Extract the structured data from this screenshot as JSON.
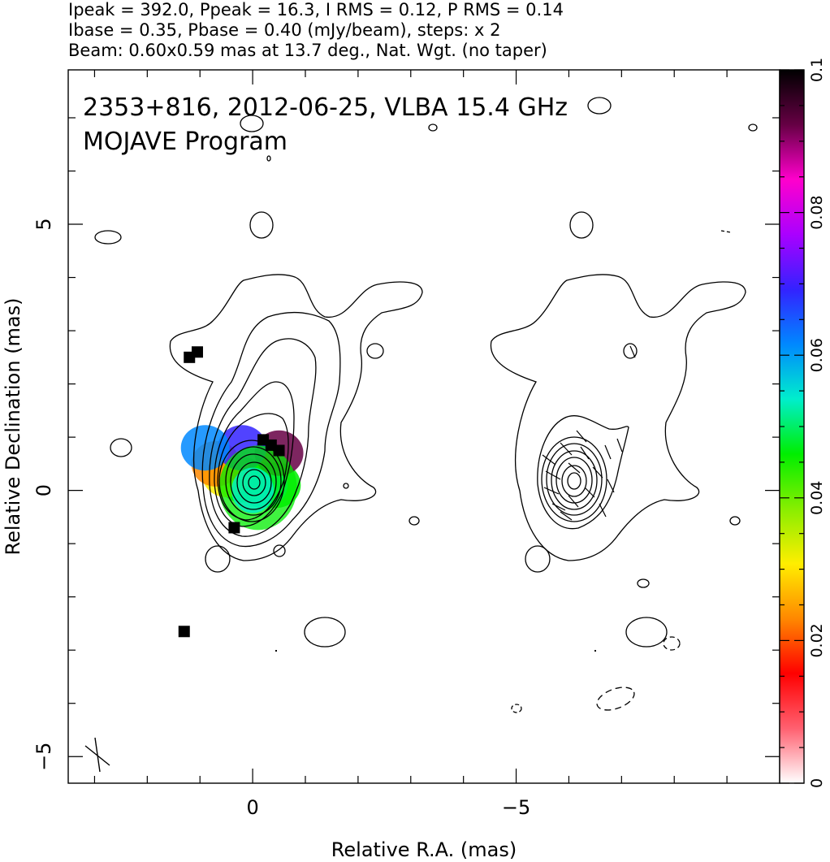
{
  "header": {
    "line1": "Ipeak = 392.0, Ppeak = 16.3, I RMS = 0.12, P RMS = 0.14",
    "line2": "Ibase = 0.35, Pbase = 0.40 (mJy/beam), steps: x 2",
    "line3": "Beam: 0.60x0.59 mas at 13.7 deg., Nat. Wgt. (no taper)"
  },
  "chart_data": {
    "type": "heatmap",
    "title": "2353+816, 2012-06-25, VLBA 15.4 GHz",
    "subtitle": "MOJAVE Program",
    "xlabel": "Relative R.A. (mas)",
    "ylabel": "Relative Declination (mas)",
    "xlim": [
      3.5,
      -10
    ],
    "ylim": [
      -5.5,
      7.9
    ],
    "x_ticks": [
      0,
      -5
    ],
    "x_tick_labels": [
      "0",
      "−5"
    ],
    "y_ticks": [
      -5,
      0,
      5
    ],
    "y_tick_labels": [
      "−5",
      "0",
      "5"
    ],
    "colorbar": {
      "range": [
        0,
        0.1
      ],
      "ticks": [
        0,
        0.02,
        0.04,
        0.06,
        0.08,
        0.1
      ],
      "tick_labels": [
        "0",
        "0.02",
        "0.04",
        "0.06",
        "0.08",
        "0.1"
      ],
      "colors": [
        "#ffffff",
        "#ff6070",
        "#ff0000",
        "#ff8800",
        "#ffee00",
        "#88ee00",
        "#00ee00",
        "#00eecc",
        "#0088ff",
        "#3322ff",
        "#aa00ff",
        "#ff00cc",
        "#660044",
        "#000000"
      ]
    },
    "beam": {
      "major_mas": 0.6,
      "minor_mas": 0.59,
      "pa_deg": 13.7
    },
    "total_intensity_contours": {
      "center": [
        0,
        0
      ],
      "peak_mJy_per_beam": 392.0,
      "base_mJy_per_beam": 0.35,
      "step_factor": 2
    },
    "polarization_map": {
      "fractional_pol_values": [
        {
          "x": -0.45,
          "y": 0.1,
          "v": 0.045
        },
        {
          "x": -0.2,
          "y": 0.1,
          "v": 0.05
        },
        {
          "x": 0.2,
          "y": 0.2,
          "v": 0.045
        },
        {
          "x": 0.5,
          "y": 0.3,
          "v": 0.03
        },
        {
          "x": 0.7,
          "y": 0.5,
          "v": 0.025
        },
        {
          "x": -0.5,
          "y": 0.7,
          "v": 0.09
        },
        {
          "x": 0.2,
          "y": 0.8,
          "v": 0.07
        },
        {
          "x": 0.9,
          "y": 0.8,
          "v": 0.06
        }
      ]
    }
  }
}
